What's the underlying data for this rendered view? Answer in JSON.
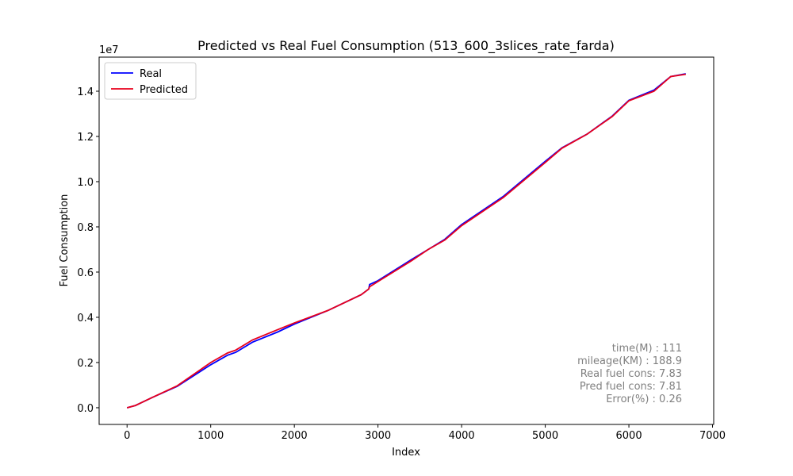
{
  "chart_data": {
    "type": "line",
    "title": "Predicted vs Real Fuel Consumption (513_600_3slices_rate_farda)",
    "xlabel": "Index",
    "ylabel": "Fuel Consumption",
    "y_offset_label": "1e7",
    "x": [
      0,
      100,
      300,
      600,
      1000,
      1200,
      1300,
      1500,
      1800,
      2000,
      2400,
      2800,
      2890,
      2900,
      3000,
      3400,
      3600,
      3800,
      4000,
      4500,
      5000,
      5200,
      5500,
      5800,
      6000,
      6300,
      6500,
      6680
    ],
    "series": [
      {
        "name": "Real",
        "color": "#0000ff",
        "values": [
          0,
          100000,
          450000,
          950000,
          1900000,
          2320000,
          2450000,
          2900000,
          3350000,
          3700000,
          4300000,
          5000000,
          5250000,
          5450000,
          5620000,
          6550000,
          7000000,
          7450000,
          8100000,
          9350000,
          10900000,
          11500000,
          12100000,
          12900000,
          13600000,
          14050000,
          14650000,
          14770000
        ]
      },
      {
        "name": "Predicted",
        "color": "#e8001c",
        "values": [
          0,
          100000,
          450000,
          970000,
          2000000,
          2420000,
          2550000,
          3000000,
          3450000,
          3750000,
          4300000,
          5000000,
          5250000,
          5350000,
          5580000,
          6500000,
          7000000,
          7420000,
          8050000,
          9300000,
          10850000,
          11480000,
          12100000,
          12880000,
          13580000,
          14000000,
          14650000,
          14750000
        ]
      }
    ],
    "xlim": [
      -334,
      7014
    ],
    "xticks": [
      0,
      1000,
      2000,
      3000,
      4000,
      5000,
      6000,
      7000
    ],
    "ylim": [
      -738500,
      15508500
    ],
    "yticks": [
      {
        "value": 0,
        "label": "0.0"
      },
      {
        "value": 2000000,
        "label": "0.2"
      },
      {
        "value": 4000000,
        "label": "0.4"
      },
      {
        "value": 6000000,
        "label": "0.6"
      },
      {
        "value": 8000000,
        "label": "0.8"
      },
      {
        "value": 10000000,
        "label": "1.0"
      },
      {
        "value": 12000000,
        "label": "1.2"
      },
      {
        "value": 14000000,
        "label": "1.4"
      }
    ],
    "legend": "upper left",
    "annotations": [
      "time(M) : 111",
      "mileage(KM) : 188.9",
      "Real fuel cons: 7.83",
      "Pred fuel cons: 7.81",
      "Error(%) : 0.26"
    ]
  }
}
